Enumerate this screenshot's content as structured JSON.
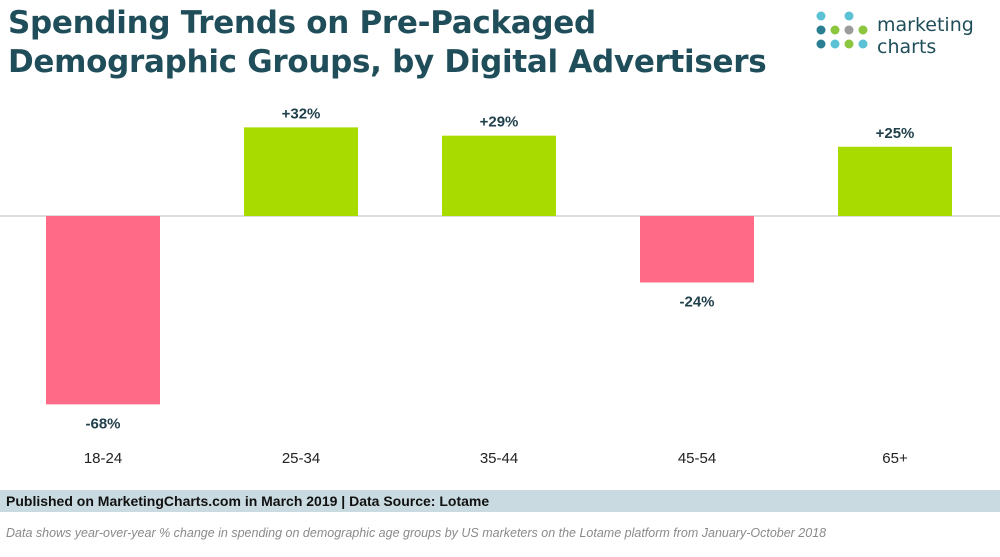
{
  "header": {
    "title_line1": "Spending Trends on Pre-Packaged",
    "title_line2": "Demographic Groups, by Digital Advertisers"
  },
  "logo": {
    "line1": "marketing",
    "line2": "charts",
    "dot_colors": [
      "#5bc2d6",
      "#2a7f92",
      "#8cc63f",
      "#9b9b9b"
    ]
  },
  "colors": {
    "positive": "#a8dc00",
    "negative": "#ff6b86",
    "label": "#1f3f4a",
    "baseline": "#bbbbbb"
  },
  "chart_data": {
    "type": "bar",
    "categories": [
      "18-24",
      "25-34",
      "35-44",
      "45-54",
      "65+"
    ],
    "values": [
      -68,
      32,
      29,
      -24,
      25
    ],
    "value_labels": [
      "-68%",
      "+32%",
      "+29%",
      "-24%",
      "+25%"
    ],
    "unit": "%",
    "title": "Spending Trends on Pre-Packaged Demographic Groups, by Digital Advertisers",
    "xlabel": "",
    "ylabel": "",
    "ylim": [
      -68,
      32
    ],
    "grid": false,
    "legend": "none"
  },
  "footer": {
    "published": "Published on MarketingCharts.com in March 2019 | Data Source: Lotame",
    "note": "Data shows year-over-year % change in spending on demographic age groups by US marketers on the Lotame platform from January-October 2018"
  }
}
